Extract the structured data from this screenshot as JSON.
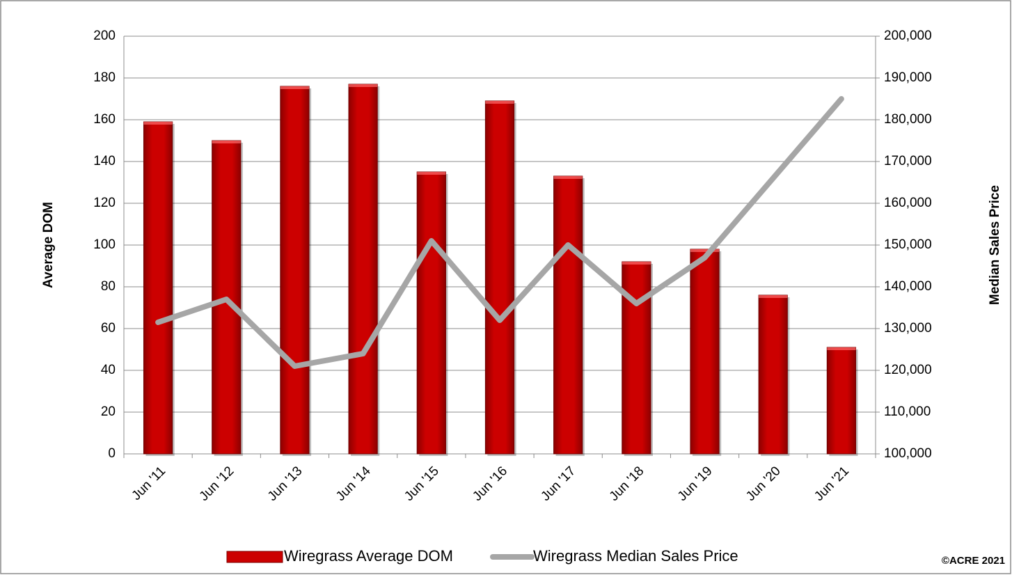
{
  "chart_data": {
    "type": "bar-line",
    "categories": [
      "Jun '11",
      "Jun '12",
      "Jun '13",
      "Jun '14",
      "Jun '15",
      "Jun '16",
      "Jun '17",
      "Jun '18",
      "Jun '19",
      "Jun '20",
      "Jun '21"
    ],
    "series": [
      {
        "name": "Wiregrass Average DOM",
        "type": "bar",
        "color": "#cc0000",
        "values": [
          159,
          150,
          176,
          177,
          135,
          169,
          133,
          92,
          98,
          76,
          51
        ]
      },
      {
        "name": "Wiregrass Median Sales Price",
        "type": "line",
        "axis": "y2",
        "color": "#a6a6a6",
        "values": [
          131500,
          137000,
          121000,
          124000,
          151000,
          132000,
          150000,
          136000,
          147000,
          166000,
          185000
        ]
      }
    ],
    "ylabel": "Average DOM",
    "y2label": "Median Sales Price",
    "ylim": [
      0,
      200
    ],
    "yticks": [
      0,
      20,
      40,
      60,
      80,
      100,
      120,
      140,
      160,
      180,
      200
    ],
    "y2lim": [
      100000,
      200000
    ],
    "y2ticks": [
      {
        "value": 100000,
        "label": "100,000"
      },
      {
        "value": 110000,
        "label": "110,000"
      },
      {
        "value": 120000,
        "label": "120,000"
      },
      {
        "value": 130000,
        "label": "130,000"
      },
      {
        "value": 140000,
        "label": "140,000"
      },
      {
        "value": 150000,
        "label": "150,000"
      },
      {
        "value": 160000,
        "label": "160,000"
      },
      {
        "value": 170000,
        "label": "170,000"
      },
      {
        "value": 180000,
        "label": "180,000"
      },
      {
        "value": 190000,
        "label": "190,000"
      },
      {
        "value": 200000,
        "label": "200,000"
      }
    ],
    "grid": true,
    "legend": "bottom",
    "annotation": "©ACRE 2021"
  }
}
